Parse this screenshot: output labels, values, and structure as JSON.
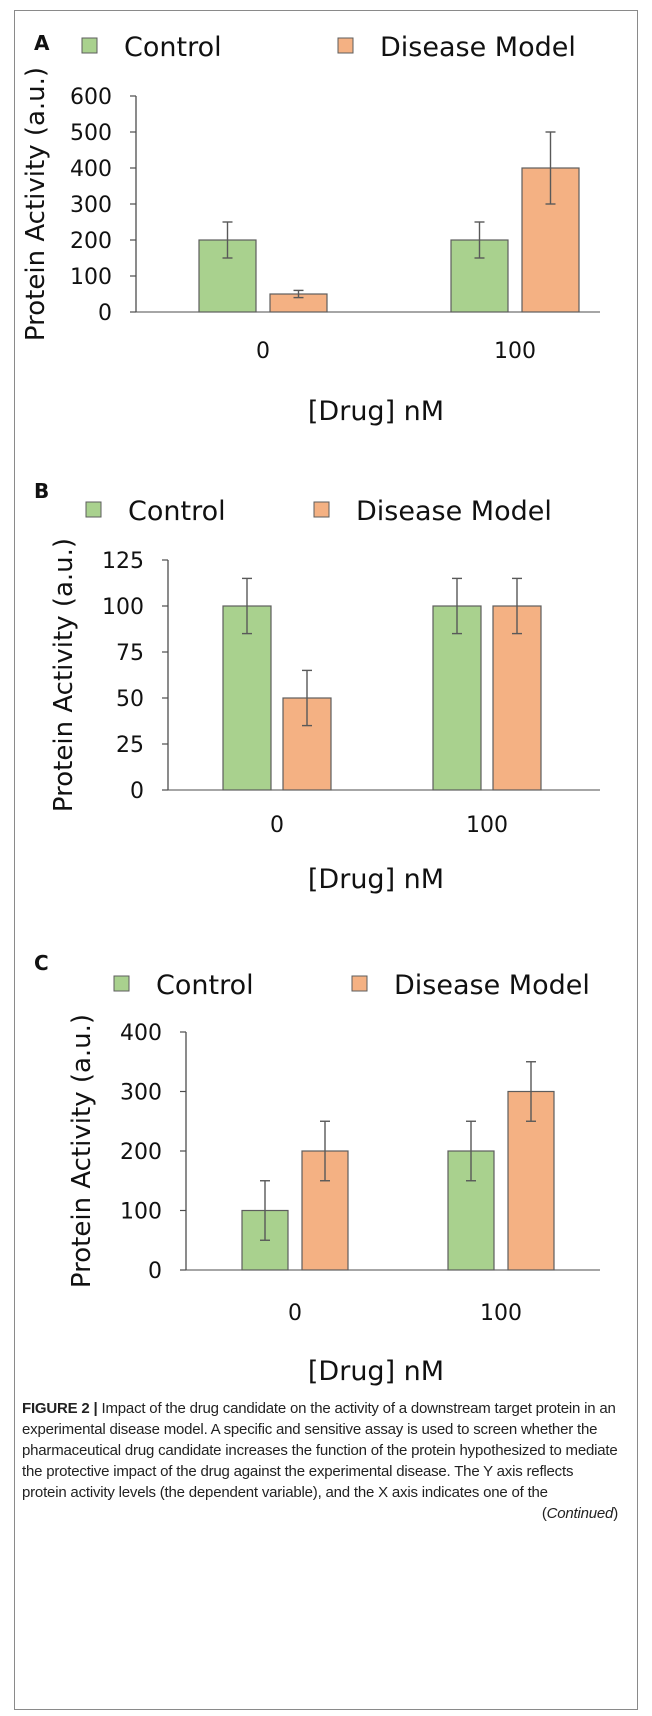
{
  "figure": {
    "caption_label": "FIGURE 2 |",
    "caption_text": "Impact of the drug candidate on the activity of a downstream target protein in an experimental disease model. A specific and sensitive assay is used to screen whether the pharmaceutical drug candidate increases the function of the protein hypothesized to mediate the protective impact of the drug against the experimental disease. The Y axis reflects protein activity levels (the dependent variable), and the X axis indicates one of the",
    "continued_open": "(",
    "continued_word": "Continued",
    "continued_close": ")"
  },
  "colors": {
    "control": "#a9d18e",
    "control_stroke": "#5d5d5d",
    "disease": "#f4b183",
    "disease_stroke": "#5d5d5d",
    "axis": "#4d4d4d",
    "errorbar": "#595959"
  },
  "chart_data": [
    {
      "type": "bar",
      "panel_label": "A",
      "categories": [
        "0",
        "100"
      ],
      "xlabel": "[Drug] nM",
      "ylabel": "Protein Activity (a.u.)",
      "ylim": [
        0,
        600
      ],
      "yticks": [
        0,
        100,
        200,
        300,
        400,
        500,
        600
      ],
      "legend": "top",
      "series": [
        {
          "name": "Control",
          "values": [
            200,
            200
          ],
          "errors": [
            50,
            50
          ]
        },
        {
          "name": "Disease Model",
          "values": [
            50,
            400
          ],
          "errors": [
            10,
            100
          ]
        }
      ]
    },
    {
      "type": "bar",
      "panel_label": "B",
      "categories": [
        "0",
        "100"
      ],
      "xlabel": "[Drug] nM",
      "ylabel": "Protein Activity (a.u.)",
      "ylim": [
        0,
        125
      ],
      "yticks": [
        0,
        25,
        50,
        75,
        100,
        125
      ],
      "legend": "top",
      "series": [
        {
          "name": "Control",
          "values": [
            100,
            100
          ],
          "errors": [
            15,
            15
          ]
        },
        {
          "name": "Disease Model",
          "values": [
            50,
            100
          ],
          "errors": [
            15,
            15
          ]
        }
      ]
    },
    {
      "type": "bar",
      "panel_label": "C",
      "categories": [
        "0",
        "100"
      ],
      "xlabel": "[Drug] nM",
      "ylabel": "Protein Activity (a.u.)",
      "ylim": [
        0,
        400
      ],
      "yticks": [
        0,
        100,
        200,
        300,
        400
      ],
      "legend": "top",
      "series": [
        {
          "name": "Control",
          "values": [
            100,
            200
          ],
          "errors": [
            50,
            50
          ]
        },
        {
          "name": "Disease Model",
          "values": [
            200,
            300
          ],
          "errors": [
            50,
            50
          ]
        }
      ]
    }
  ]
}
